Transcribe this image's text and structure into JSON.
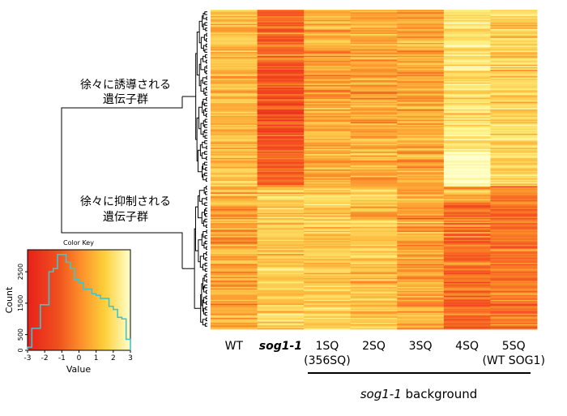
{
  "chart_data": [
    {
      "type": "heatmap",
      "columns": [
        "WT",
        "sog1-1",
        "1SQ",
        "2SQ",
        "3SQ",
        "4SQ",
        "5SQ"
      ],
      "column_sublabels": [
        "",
        "",
        "(356SQ)",
        "",
        "",
        "",
        "(WT SOG1)"
      ],
      "column_label_italic": [
        false,
        true,
        false,
        false,
        false,
        false,
        false
      ],
      "group_label_mutant": "sog1-1",
      "group_label_suffix": " background",
      "cluster_labels": [
        {
          "line1": "徐々に誘導される",
          "line2": "遺伝子群"
        },
        {
          "line1": "徐々に抑制される",
          "line2": "遺伝子群"
        }
      ],
      "row_count": 250,
      "color_scale": {
        "min": -3,
        "max": 3,
        "low_color": "#e8201a",
        "mid_color": "#fb8a28",
        "high_color": "#ffffcc"
      },
      "column_profiles": {
        "upper_cluster_mean": [
          0.9,
          -0.6,
          0.6,
          0.5,
          0.5,
          1.8,
          1.4
        ],
        "lower_cluster_mean": [
          0.5,
          1.3,
          1.3,
          1.1,
          0.4,
          -0.5,
          -0.3
        ]
      }
    },
    {
      "type": "histogram",
      "title": "Color Key",
      "xlabel": "Value",
      "ylabel": "Count",
      "xlim": [
        -3,
        3
      ],
      "ylim": [
        0,
        3200
      ],
      "x_ticks": [
        -3,
        -2,
        -1,
        0,
        1,
        2,
        3
      ],
      "y_ticks": [
        0,
        500,
        1500,
        2500
      ],
      "bin_edges": [
        -3.0,
        -2.75,
        -2.5,
        -2.25,
        -2.0,
        -1.75,
        -1.5,
        -1.25,
        -1.0,
        -0.75,
        -0.5,
        -0.25,
        0.0,
        0.25,
        0.5,
        0.75,
        1.0,
        1.25,
        1.5,
        1.75,
        2.0,
        2.25,
        2.5,
        2.75,
        3.0
      ],
      "counts": [
        100,
        700,
        700,
        1450,
        1450,
        2500,
        2600,
        3050,
        3050,
        2800,
        2600,
        2250,
        2150,
        1950,
        1950,
        1800,
        1750,
        1650,
        1650,
        1400,
        1300,
        1050,
        1000,
        350
      ],
      "line_color": "#3ec6d0"
    }
  ]
}
